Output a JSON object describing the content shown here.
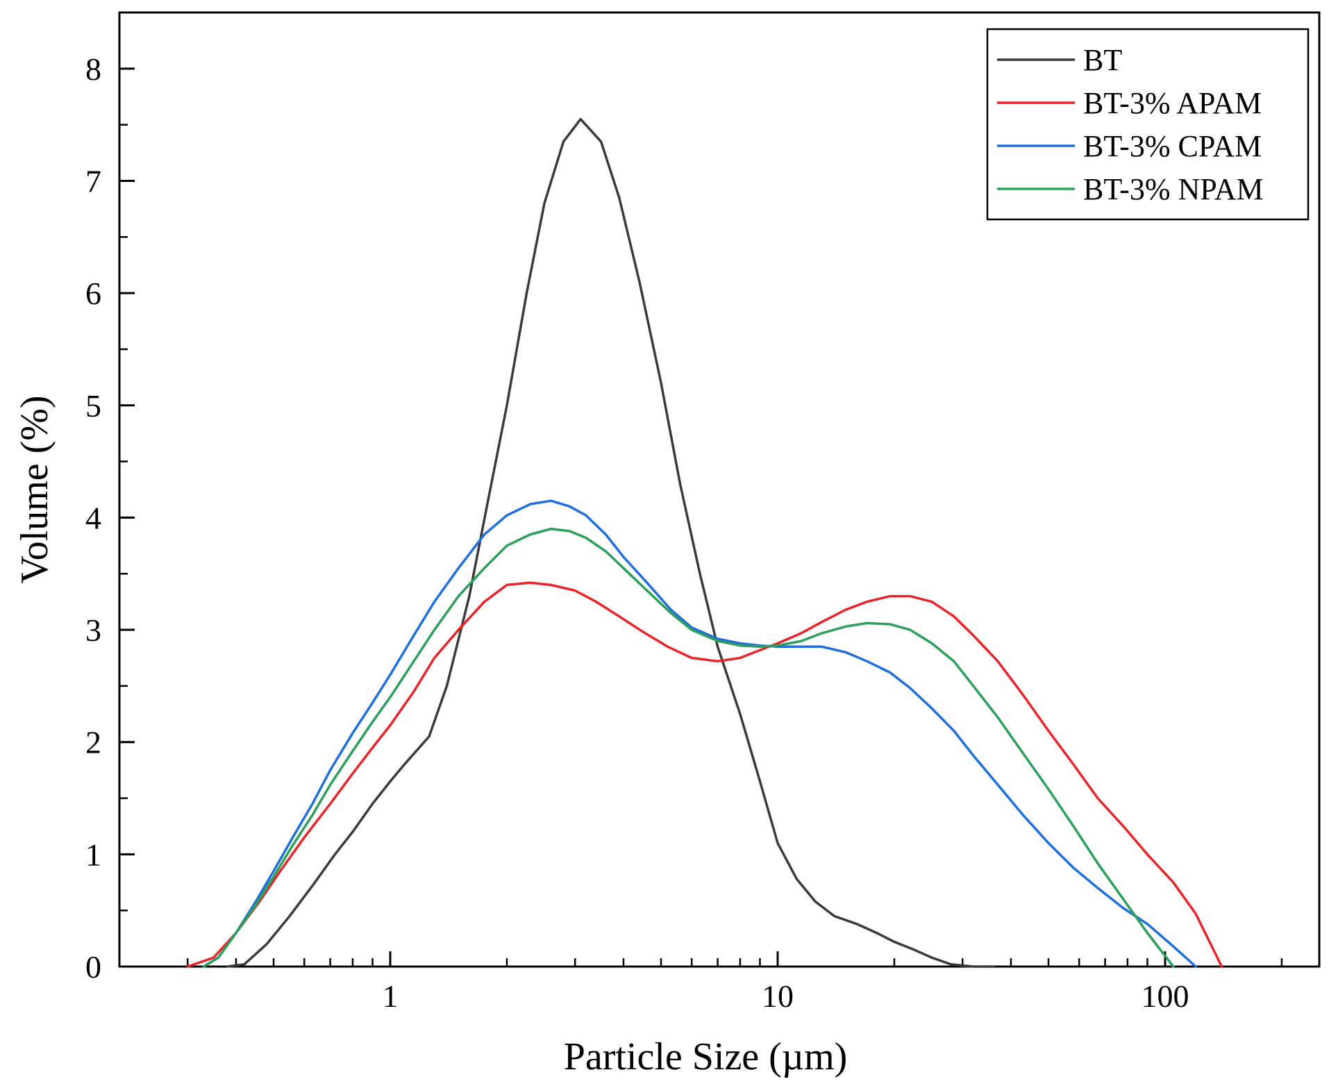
{
  "chart_data": {
    "type": "line",
    "title": "",
    "xlabel": "Particle Size (µm)",
    "ylabel": "Volume (%)",
    "xscale": "log",
    "xlim": [
      0.2,
      250
    ],
    "ylim": [
      0,
      8.5
    ],
    "xticks": [
      1,
      10,
      100
    ],
    "xtick_labels": [
      "1",
      "10",
      "100"
    ],
    "yticks": [
      0,
      1,
      2,
      3,
      4,
      5,
      6,
      7,
      8
    ],
    "ytick_labels": [
      "0",
      "1",
      "2",
      "3",
      "4",
      "5",
      "6",
      "7",
      "8"
    ],
    "legend_position": "top-right",
    "series": [
      {
        "name": "BT",
        "color": "#3a3a3a",
        "x": [
          0.38,
          0.42,
          0.48,
          0.55,
          0.63,
          0.72,
          0.8,
          0.9,
          1.0,
          1.1,
          1.26,
          1.4,
          1.6,
          1.8,
          2.0,
          2.25,
          2.5,
          2.8,
          3.1,
          3.5,
          3.9,
          4.4,
          5.0,
          5.6,
          6.3,
          7.0,
          8.0,
          9.0,
          10.0,
          11.2,
          12.5,
          14.0,
          16.0,
          18.0,
          20.0,
          22.5,
          25.0,
          28.0,
          32.0,
          36.0
        ],
        "y": [
          0.0,
          0.02,
          0.2,
          0.45,
          0.72,
          1.0,
          1.2,
          1.45,
          1.65,
          1.82,
          2.05,
          2.5,
          3.3,
          4.2,
          5.0,
          6.0,
          6.8,
          7.35,
          7.55,
          7.35,
          6.85,
          6.1,
          5.2,
          4.3,
          3.5,
          2.85,
          2.25,
          1.65,
          1.1,
          0.78,
          0.58,
          0.45,
          0.38,
          0.3,
          0.22,
          0.15,
          0.08,
          0.02,
          0.0,
          0.0
        ]
      },
      {
        "name": "BT-3% APAM",
        "color": "#e8242a",
        "x": [
          0.3,
          0.35,
          0.4,
          0.46,
          0.52,
          0.6,
          0.7,
          0.8,
          0.9,
          1.0,
          1.15,
          1.3,
          1.5,
          1.75,
          2.0,
          2.3,
          2.6,
          3.0,
          3.4,
          3.9,
          4.5,
          5.2,
          6.0,
          7.0,
          8.0,
          9.0,
          10.0,
          11.5,
          13.0,
          15.0,
          17.0,
          19.5,
          22.0,
          25.0,
          28.5,
          32.0,
          37.0,
          43.0,
          50.0,
          58.0,
          67.0,
          78.0,
          90.0,
          105.0,
          120.0,
          140.0
        ],
        "y": [
          0.0,
          0.08,
          0.3,
          0.58,
          0.85,
          1.15,
          1.45,
          1.72,
          1.95,
          2.15,
          2.45,
          2.75,
          3.0,
          3.25,
          3.4,
          3.42,
          3.4,
          3.35,
          3.25,
          3.12,
          2.98,
          2.85,
          2.75,
          2.72,
          2.75,
          2.82,
          2.88,
          2.97,
          3.07,
          3.18,
          3.25,
          3.3,
          3.3,
          3.25,
          3.12,
          2.95,
          2.72,
          2.42,
          2.1,
          1.8,
          1.5,
          1.25,
          1.0,
          0.75,
          0.47,
          0.0
        ]
      },
      {
        "name": "BT-3% CPAM",
        "color": "#1e6fdc",
        "x": [
          0.33,
          0.36,
          0.4,
          0.45,
          0.5,
          0.56,
          0.63,
          0.7,
          0.8,
          0.9,
          1.0,
          1.15,
          1.3,
          1.5,
          1.75,
          2.0,
          2.3,
          2.6,
          2.9,
          3.2,
          3.6,
          4.0,
          4.6,
          5.3,
          6.0,
          7.0,
          8.0,
          9.0,
          10.0,
          11.5,
          13.0,
          15.0,
          17.0,
          19.5,
          22.0,
          25.0,
          28.5,
          32.0,
          37.0,
          43.0,
          50.0,
          58.0,
          67.0,
          78.0,
          90.0,
          105.0,
          120.0
        ],
        "y": [
          0.0,
          0.08,
          0.3,
          0.58,
          0.85,
          1.15,
          1.45,
          1.75,
          2.08,
          2.35,
          2.6,
          2.95,
          3.25,
          3.55,
          3.85,
          4.02,
          4.12,
          4.15,
          4.1,
          4.02,
          3.85,
          3.65,
          3.42,
          3.18,
          3.02,
          2.92,
          2.88,
          2.86,
          2.85,
          2.85,
          2.85,
          2.8,
          2.72,
          2.62,
          2.48,
          2.3,
          2.1,
          1.88,
          1.62,
          1.35,
          1.1,
          0.88,
          0.7,
          0.52,
          0.38,
          0.18,
          0.0
        ]
      },
      {
        "name": "BT-3% NPAM",
        "color": "#2ca05a",
        "x": [
          0.33,
          0.36,
          0.4,
          0.45,
          0.5,
          0.56,
          0.63,
          0.7,
          0.8,
          0.9,
          1.0,
          1.15,
          1.3,
          1.5,
          1.75,
          2.0,
          2.3,
          2.6,
          2.9,
          3.2,
          3.6,
          4.0,
          4.6,
          5.3,
          6.0,
          7.0,
          8.0,
          9.0,
          10.0,
          11.5,
          13.0,
          15.0,
          17.0,
          19.5,
          22.0,
          25.0,
          28.5,
          32.0,
          37.0,
          43.0,
          50.0,
          58.0,
          67.0,
          78.0,
          90.0,
          105.0
        ],
        "y": [
          0.0,
          0.08,
          0.3,
          0.55,
          0.8,
          1.08,
          1.35,
          1.62,
          1.92,
          2.18,
          2.4,
          2.72,
          3.0,
          3.3,
          3.55,
          3.75,
          3.85,
          3.9,
          3.88,
          3.82,
          3.7,
          3.55,
          3.35,
          3.15,
          3.0,
          2.9,
          2.86,
          2.85,
          2.86,
          2.9,
          2.97,
          3.03,
          3.06,
          3.05,
          3.0,
          2.88,
          2.72,
          2.5,
          2.22,
          1.9,
          1.58,
          1.25,
          0.92,
          0.6,
          0.3,
          0.0
        ]
      }
    ]
  }
}
